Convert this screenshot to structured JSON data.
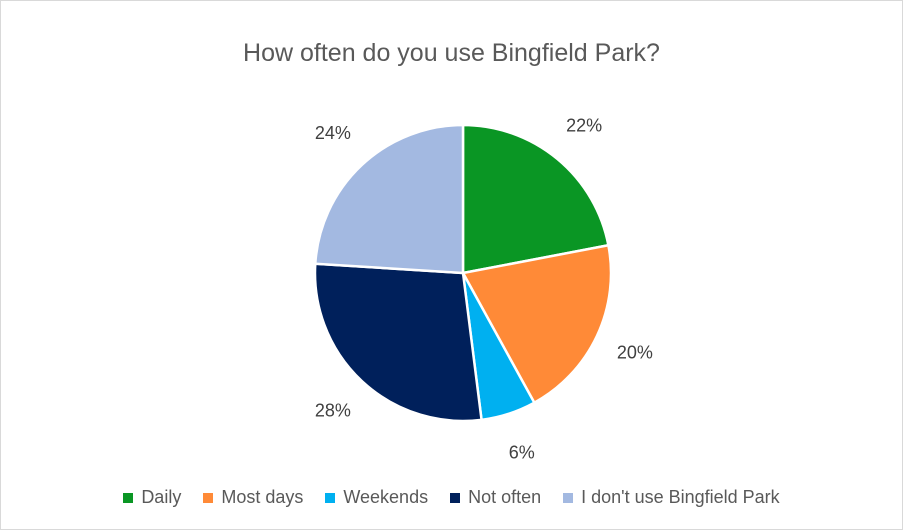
{
  "chart_data": {
    "type": "pie",
    "title": "How often do you use Bingfield Park?",
    "categories": [
      "Daily",
      "Most days",
      "Weekends",
      "Not often",
      "I don't use Bingfield Park"
    ],
    "values": [
      22,
      20,
      6,
      28,
      24
    ],
    "labels": [
      "22%",
      "20%",
      "6%",
      "28%",
      "24%"
    ],
    "colors": [
      "#0a9624",
      "#ff8a37",
      "#00b0f0",
      "#00205b",
      "#a3b9e1"
    ],
    "legend_position": "bottom"
  }
}
